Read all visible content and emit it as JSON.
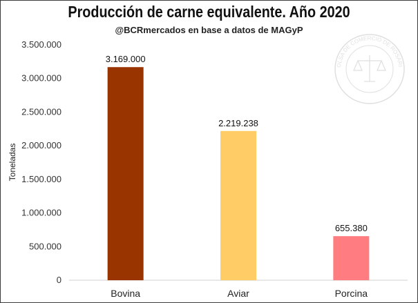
{
  "chart_data": {
    "type": "bar",
    "title": "Producción de carne equivalente. Año 2020",
    "subtitle": "@BCRmercados en base a datos de MAGyP",
    "xlabel": "",
    "ylabel": "Toneladas",
    "categories": [
      "Bovina",
      "Aviar",
      "Porcina"
    ],
    "values": [
      3169000,
      2219238,
      655380
    ],
    "value_labels": [
      "3.169.000",
      "2.219.238",
      "655.380"
    ],
    "colors": [
      "#993300",
      "#ffcc66",
      "#ff7c80"
    ],
    "ylim": [
      0,
      3500000
    ],
    "yticks": [
      0,
      500000,
      1000000,
      1500000,
      2000000,
      2500000,
      3000000,
      3500000
    ],
    "ytick_labels": [
      "0",
      "500.000",
      "1.000.000",
      "1.500.000",
      "2.000.000",
      "2.500.000",
      "3.000.000",
      "3.500.000"
    ],
    "grid": false,
    "legend": "none"
  },
  "watermark": {
    "text": "BOLSA DE COMERCIO DE ROSARIO",
    "icon": "scales-of-justice-seal-icon"
  }
}
